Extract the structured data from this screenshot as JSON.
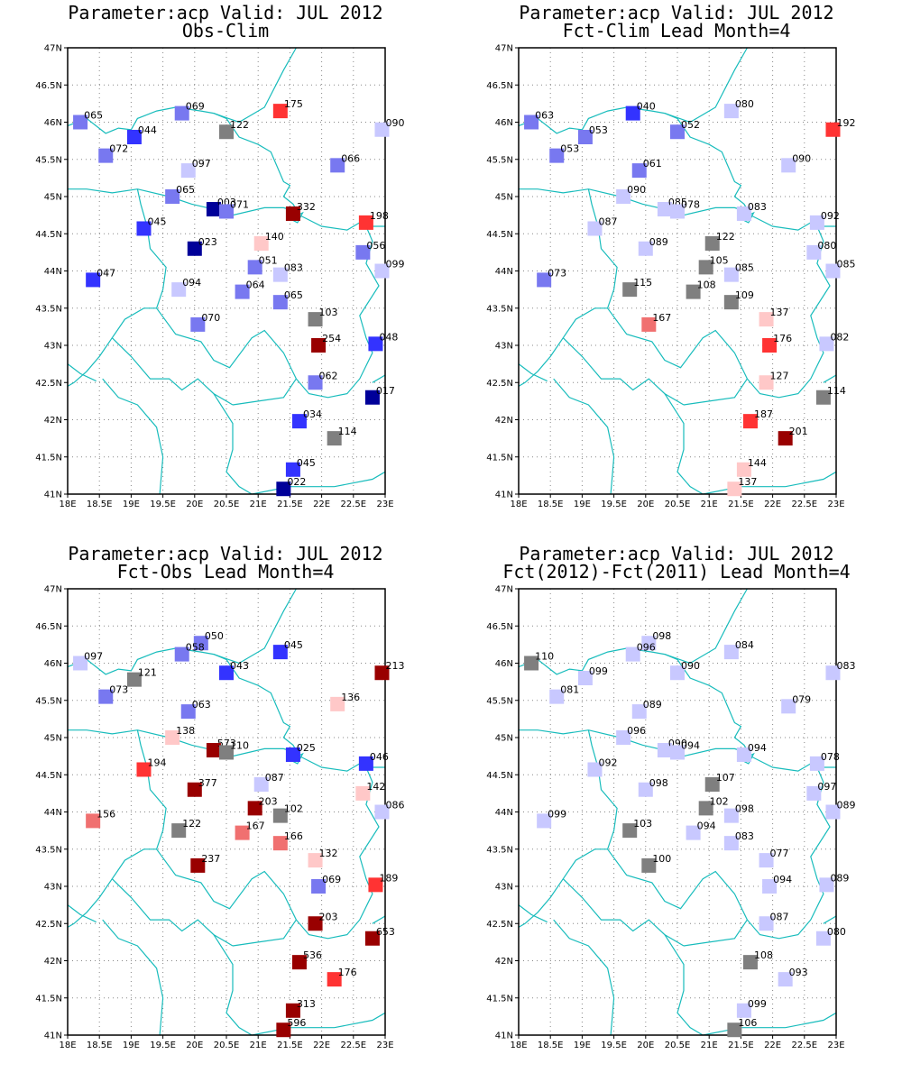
{
  "map": {
    "lon_min": 18,
    "lon_max": 23,
    "lat_min": 41,
    "lat_max": 47,
    "lon_ticks": [
      "18E",
      "18.5E",
      "19E",
      "19.5E",
      "20E",
      "20.5E",
      "21E",
      "21.5E",
      "22E",
      "22.5E",
      "23E"
    ],
    "lat_ticks": [
      "41N",
      "41.5N",
      "42N",
      "42.5N",
      "43N",
      "43.5N",
      "44N",
      "44.5N",
      "45N",
      "45.5N",
      "46N",
      "46.5N",
      "47N"
    ],
    "gridlines": "dotted",
    "border_color": "#18bcbc"
  },
  "colors": {
    "dark_red": "#990000",
    "red": "#ff3333",
    "light_red": "#f07070",
    "pale_red": "#ffc8c8",
    "gray": "#7f7f7f",
    "pale_blue": "#c8c8ff",
    "light_blue": "#7878f0",
    "blue": "#3333ff",
    "dark_blue": "#000099"
  },
  "panels": [
    {
      "title_line1": "Parameter:acp Valid: JUL 2012",
      "title_line2": "Obs-Clim",
      "stations": [
        {
          "lon": 18.2,
          "lat": 46.0,
          "label": "065",
          "color": "light_blue"
        },
        {
          "lon": 19.8,
          "lat": 46.12,
          "label": "069",
          "color": "light_blue"
        },
        {
          "lon": 21.35,
          "lat": 46.15,
          "label": "175",
          "color": "red"
        },
        {
          "lon": 20.5,
          "lat": 45.87,
          "label": "122",
          "color": "gray"
        },
        {
          "lon": 22.95,
          "lat": 45.9,
          "label": "090",
          "color": "pale_blue"
        },
        {
          "lon": 19.05,
          "lat": 45.8,
          "label": "044",
          "color": "blue"
        },
        {
          "lon": 18.6,
          "lat": 45.55,
          "label": "072",
          "color": "light_blue"
        },
        {
          "lon": 19.9,
          "lat": 45.35,
          "label": "097",
          "color": "pale_blue"
        },
        {
          "lon": 22.25,
          "lat": 45.42,
          "label": "066",
          "color": "light_blue"
        },
        {
          "lon": 19.65,
          "lat": 45.0,
          "label": "065",
          "color": "light_blue"
        },
        {
          "lon": 20.3,
          "lat": 44.83,
          "label": "003",
          "color": "dark_blue"
        },
        {
          "lon": 20.5,
          "lat": 44.8,
          "label": "071",
          "color": "light_blue"
        },
        {
          "lon": 21.55,
          "lat": 44.77,
          "label": "332",
          "color": "dark_red"
        },
        {
          "lon": 22.7,
          "lat": 44.65,
          "label": "198",
          "color": "red"
        },
        {
          "lon": 19.2,
          "lat": 44.57,
          "label": "045",
          "color": "blue"
        },
        {
          "lon": 20.0,
          "lat": 44.3,
          "label": "023",
          "color": "dark_blue"
        },
        {
          "lon": 21.05,
          "lat": 44.37,
          "label": "140",
          "color": "pale_red"
        },
        {
          "lon": 22.65,
          "lat": 44.25,
          "label": "056",
          "color": "light_blue"
        },
        {
          "lon": 20.95,
          "lat": 44.05,
          "label": "051",
          "color": "light_blue"
        },
        {
          "lon": 21.35,
          "lat": 43.95,
          "label": "083",
          "color": "pale_blue"
        },
        {
          "lon": 22.95,
          "lat": 44.0,
          "label": "099",
          "color": "pale_blue"
        },
        {
          "lon": 18.4,
          "lat": 43.88,
          "label": "047",
          "color": "blue"
        },
        {
          "lon": 19.75,
          "lat": 43.75,
          "label": "094",
          "color": "pale_blue"
        },
        {
          "lon": 20.75,
          "lat": 43.72,
          "label": "064",
          "color": "light_blue"
        },
        {
          "lon": 21.35,
          "lat": 43.58,
          "label": "065",
          "color": "light_blue"
        },
        {
          "lon": 21.9,
          "lat": 43.35,
          "label": "103",
          "color": "gray"
        },
        {
          "lon": 20.05,
          "lat": 43.28,
          "label": "070",
          "color": "light_blue"
        },
        {
          "lon": 21.95,
          "lat": 43.0,
          "label": "254",
          "color": "dark_red"
        },
        {
          "lon": 22.85,
          "lat": 43.02,
          "label": "048",
          "color": "blue"
        },
        {
          "lon": 21.9,
          "lat": 42.5,
          "label": "062",
          "color": "light_blue"
        },
        {
          "lon": 22.8,
          "lat": 42.3,
          "label": "017",
          "color": "dark_blue"
        },
        {
          "lon": 21.65,
          "lat": 41.98,
          "label": "034",
          "color": "blue"
        },
        {
          "lon": 22.2,
          "lat": 41.75,
          "label": "114",
          "color": "gray"
        },
        {
          "lon": 21.55,
          "lat": 41.33,
          "label": "045",
          "color": "blue"
        },
        {
          "lon": 21.4,
          "lat": 41.07,
          "label": "022",
          "color": "dark_blue"
        }
      ]
    },
    {
      "title_line1": "Parameter:acp Valid: JUL 2012",
      "title_line2": "Fct-Clim Lead Month=4",
      "stations": [
        {
          "lon": 18.2,
          "lat": 46.0,
          "label": "063",
          "color": "light_blue"
        },
        {
          "lon": 19.8,
          "lat": 46.12,
          "label": "040",
          "color": "blue"
        },
        {
          "lon": 21.35,
          "lat": 46.15,
          "label": "080",
          "color": "pale_blue"
        },
        {
          "lon": 20.5,
          "lat": 45.87,
          "label": "052",
          "color": "light_blue"
        },
        {
          "lon": 22.95,
          "lat": 45.9,
          "label": "192",
          "color": "red"
        },
        {
          "lon": 19.05,
          "lat": 45.8,
          "label": "053",
          "color": "light_blue"
        },
        {
          "lon": 18.6,
          "lat": 45.55,
          "label": "053",
          "color": "light_blue"
        },
        {
          "lon": 19.9,
          "lat": 45.35,
          "label": "061",
          "color": "light_blue"
        },
        {
          "lon": 22.25,
          "lat": 45.42,
          "label": "090",
          "color": "pale_blue"
        },
        {
          "lon": 19.65,
          "lat": 45.0,
          "label": "090",
          "color": "pale_blue"
        },
        {
          "lon": 20.3,
          "lat": 44.83,
          "label": "085",
          "color": "pale_blue"
        },
        {
          "lon": 20.5,
          "lat": 44.8,
          "label": "078",
          "color": "pale_blue"
        },
        {
          "lon": 21.55,
          "lat": 44.77,
          "label": "083",
          "color": "pale_blue"
        },
        {
          "lon": 22.7,
          "lat": 44.65,
          "label": "092",
          "color": "pale_blue"
        },
        {
          "lon": 19.2,
          "lat": 44.57,
          "label": "087",
          "color": "pale_blue"
        },
        {
          "lon": 20.0,
          "lat": 44.3,
          "label": "089",
          "color": "pale_blue"
        },
        {
          "lon": 21.05,
          "lat": 44.37,
          "label": "122",
          "color": "gray"
        },
        {
          "lon": 22.65,
          "lat": 44.25,
          "label": "080",
          "color": "pale_blue"
        },
        {
          "lon": 20.95,
          "lat": 44.05,
          "label": "105",
          "color": "gray"
        },
        {
          "lon": 21.35,
          "lat": 43.95,
          "label": "085",
          "color": "pale_blue"
        },
        {
          "lon": 22.95,
          "lat": 44.0,
          "label": "085",
          "color": "pale_blue"
        },
        {
          "lon": 18.4,
          "lat": 43.88,
          "label": "073",
          "color": "light_blue"
        },
        {
          "lon": 19.75,
          "lat": 43.75,
          "label": "115",
          "color": "gray"
        },
        {
          "lon": 20.75,
          "lat": 43.72,
          "label": "108",
          "color": "gray"
        },
        {
          "lon": 21.35,
          "lat": 43.58,
          "label": "109",
          "color": "gray"
        },
        {
          "lon": 21.9,
          "lat": 43.35,
          "label": "137",
          "color": "pale_red"
        },
        {
          "lon": 20.05,
          "lat": 43.28,
          "label": "167",
          "color": "light_red"
        },
        {
          "lon": 21.95,
          "lat": 43.0,
          "label": "176",
          "color": "red"
        },
        {
          "lon": 22.85,
          "lat": 43.02,
          "label": "082",
          "color": "pale_blue"
        },
        {
          "lon": 21.9,
          "lat": 42.5,
          "label": "127",
          "color": "pale_red"
        },
        {
          "lon": 22.8,
          "lat": 42.3,
          "label": "114",
          "color": "gray"
        },
        {
          "lon": 21.65,
          "lat": 41.98,
          "label": "187",
          "color": "red"
        },
        {
          "lon": 22.2,
          "lat": 41.75,
          "label": "201",
          "color": "dark_red"
        },
        {
          "lon": 21.55,
          "lat": 41.33,
          "label": "144",
          "color": "pale_red"
        },
        {
          "lon": 21.4,
          "lat": 41.07,
          "label": "137",
          "color": "pale_red"
        }
      ]
    },
    {
      "title_line1": "Parameter:acp Valid: JUL 2012",
      "title_line2": "Fct-Obs Lead Month=4",
      "stations": [
        {
          "lon": 18.2,
          "lat": 46.0,
          "label": "097",
          "color": "pale_blue"
        },
        {
          "lon": 20.1,
          "lat": 46.27,
          "label": "050",
          "color": "light_blue"
        },
        {
          "lon": 19.8,
          "lat": 46.12,
          "label": "058",
          "color": "light_blue"
        },
        {
          "lon": 21.35,
          "lat": 46.15,
          "label": "045",
          "color": "blue"
        },
        {
          "lon": 20.5,
          "lat": 45.87,
          "label": "043",
          "color": "blue"
        },
        {
          "lon": 22.95,
          "lat": 45.87,
          "label": "213",
          "color": "dark_red"
        },
        {
          "lon": 19.05,
          "lat": 45.78,
          "label": "121",
          "color": "gray"
        },
        {
          "lon": 18.6,
          "lat": 45.55,
          "label": "073",
          "color": "light_blue"
        },
        {
          "lon": 22.25,
          "lat": 45.45,
          "label": "136",
          "color": "pale_red"
        },
        {
          "lon": 19.9,
          "lat": 45.35,
          "label": "063",
          "color": "light_blue"
        },
        {
          "lon": 19.65,
          "lat": 45.0,
          "label": "138",
          "color": "pale_red"
        },
        {
          "lon": 20.3,
          "lat": 44.83,
          "label": "573",
          "color": "dark_red"
        },
        {
          "lon": 20.5,
          "lat": 44.8,
          "label": "110",
          "color": "gray"
        },
        {
          "lon": 21.55,
          "lat": 44.77,
          "label": "025",
          "color": "blue"
        },
        {
          "lon": 22.7,
          "lat": 44.65,
          "label": "046",
          "color": "blue"
        },
        {
          "lon": 19.2,
          "lat": 44.57,
          "label": "194",
          "color": "red"
        },
        {
          "lon": 21.05,
          "lat": 44.37,
          "label": "087",
          "color": "pale_blue"
        },
        {
          "lon": 20.0,
          "lat": 44.3,
          "label": "377",
          "color": "dark_red"
        },
        {
          "lon": 22.65,
          "lat": 44.25,
          "label": "142",
          "color": "pale_red"
        },
        {
          "lon": 20.95,
          "lat": 44.05,
          "label": "203",
          "color": "dark_red"
        },
        {
          "lon": 21.35,
          "lat": 43.95,
          "label": "102",
          "color": "gray"
        },
        {
          "lon": 22.95,
          "lat": 44.0,
          "label": "086",
          "color": "pale_blue"
        },
        {
          "lon": 18.4,
          "lat": 43.88,
          "label": "156",
          "color": "light_red"
        },
        {
          "lon": 19.75,
          "lat": 43.75,
          "label": "122",
          "color": "gray"
        },
        {
          "lon": 20.75,
          "lat": 43.72,
          "label": "167",
          "color": "light_red"
        },
        {
          "lon": 21.35,
          "lat": 43.58,
          "label": "166",
          "color": "light_red"
        },
        {
          "lon": 21.9,
          "lat": 43.35,
          "label": "132",
          "color": "pale_red"
        },
        {
          "lon": 20.05,
          "lat": 43.28,
          "label": "237",
          "color": "dark_red"
        },
        {
          "lon": 21.95,
          "lat": 43.0,
          "label": "069",
          "color": "light_blue"
        },
        {
          "lon": 22.85,
          "lat": 43.02,
          "label": "189",
          "color": "red"
        },
        {
          "lon": 21.9,
          "lat": 42.5,
          "label": "203",
          "color": "dark_red"
        },
        {
          "lon": 22.8,
          "lat": 42.3,
          "label": "653",
          "color": "dark_red"
        },
        {
          "lon": 21.65,
          "lat": 41.98,
          "label": "536",
          "color": "dark_red"
        },
        {
          "lon": 22.2,
          "lat": 41.75,
          "label": "176",
          "color": "red"
        },
        {
          "lon": 21.55,
          "lat": 41.33,
          "label": "313",
          "color": "dark_red"
        },
        {
          "lon": 21.4,
          "lat": 41.07,
          "label": "596",
          "color": "dark_red"
        }
      ]
    },
    {
      "title_line1": "Parameter:acp Valid: JUL 2012",
      "title_line2": "Fct(2012)-Fct(2011) Lead Month=4",
      "stations": [
        {
          "lon": 18.2,
          "lat": 46.0,
          "label": "110",
          "color": "gray"
        },
        {
          "lon": 20.05,
          "lat": 46.27,
          "label": "098",
          "color": "pale_blue"
        },
        {
          "lon": 19.8,
          "lat": 46.12,
          "label": "096",
          "color": "pale_blue"
        },
        {
          "lon": 21.35,
          "lat": 46.15,
          "label": "084",
          "color": "pale_blue"
        },
        {
          "lon": 20.5,
          "lat": 45.87,
          "label": "090",
          "color": "pale_blue"
        },
        {
          "lon": 22.95,
          "lat": 45.87,
          "label": "083",
          "color": "pale_blue"
        },
        {
          "lon": 19.05,
          "lat": 45.8,
          "label": "099",
          "color": "pale_blue"
        },
        {
          "lon": 18.6,
          "lat": 45.55,
          "label": "081",
          "color": "pale_blue"
        },
        {
          "lon": 22.25,
          "lat": 45.42,
          "label": "079",
          "color": "pale_blue"
        },
        {
          "lon": 19.9,
          "lat": 45.35,
          "label": "089",
          "color": "pale_blue"
        },
        {
          "lon": 19.65,
          "lat": 45.0,
          "label": "096",
          "color": "pale_blue"
        },
        {
          "lon": 20.3,
          "lat": 44.83,
          "label": "090",
          "color": "pale_blue"
        },
        {
          "lon": 20.5,
          "lat": 44.8,
          "label": "094",
          "color": "pale_blue"
        },
        {
          "lon": 21.55,
          "lat": 44.77,
          "label": "094",
          "color": "pale_blue"
        },
        {
          "lon": 22.7,
          "lat": 44.65,
          "label": "078",
          "color": "pale_blue"
        },
        {
          "lon": 19.2,
          "lat": 44.57,
          "label": "092",
          "color": "pale_blue"
        },
        {
          "lon": 21.05,
          "lat": 44.37,
          "label": "107",
          "color": "gray"
        },
        {
          "lon": 20.0,
          "lat": 44.3,
          "label": "098",
          "color": "pale_blue"
        },
        {
          "lon": 22.65,
          "lat": 44.25,
          "label": "097",
          "color": "pale_blue"
        },
        {
          "lon": 20.95,
          "lat": 44.05,
          "label": "102",
          "color": "gray"
        },
        {
          "lon": 21.35,
          "lat": 43.95,
          "label": "098",
          "color": "pale_blue"
        },
        {
          "lon": 22.95,
          "lat": 44.0,
          "label": "089",
          "color": "pale_blue"
        },
        {
          "lon": 18.4,
          "lat": 43.88,
          "label": "099",
          "color": "pale_blue"
        },
        {
          "lon": 19.75,
          "lat": 43.75,
          "label": "103",
          "color": "gray"
        },
        {
          "lon": 20.75,
          "lat": 43.72,
          "label": "094",
          "color": "pale_blue"
        },
        {
          "lon": 21.35,
          "lat": 43.58,
          "label": "083",
          "color": "pale_blue"
        },
        {
          "lon": 21.9,
          "lat": 43.35,
          "label": "077",
          "color": "pale_blue"
        },
        {
          "lon": 20.05,
          "lat": 43.28,
          "label": "100",
          "color": "gray"
        },
        {
          "lon": 21.95,
          "lat": 43.0,
          "label": "094",
          "color": "pale_blue"
        },
        {
          "lon": 22.85,
          "lat": 43.02,
          "label": "089",
          "color": "pale_blue"
        },
        {
          "lon": 21.9,
          "lat": 42.5,
          "label": "087",
          "color": "pale_blue"
        },
        {
          "lon": 22.8,
          "lat": 42.3,
          "label": "080",
          "color": "pale_blue"
        },
        {
          "lon": 21.65,
          "lat": 41.98,
          "label": "108",
          "color": "gray"
        },
        {
          "lon": 22.2,
          "lat": 41.75,
          "label": "093",
          "color": "pale_blue"
        },
        {
          "lon": 21.55,
          "lat": 41.33,
          "label": "099",
          "color": "pale_blue"
        },
        {
          "lon": 21.4,
          "lat": 41.07,
          "label": "106",
          "color": "gray"
        }
      ]
    }
  ]
}
